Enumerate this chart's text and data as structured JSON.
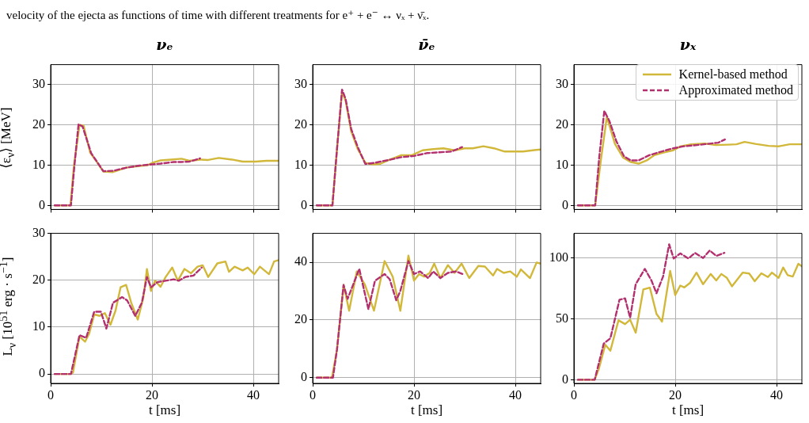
{
  "chart_data": [
    {
      "type": "line",
      "title": "νₑ",
      "ylabel": "⟨ε$_{ν}$⟩ [MeV]",
      "annotations": [
        "velocity of the ejecta as functions of time with different treatments for e⁺ + e⁻ ↔ νₓ + ν̄ₓ."
      ],
      "xlim": [
        0,
        45
      ],
      "xticks": [
        0,
        20,
        40
      ],
      "ylim": [
        -1,
        35
      ],
      "yticks": [
        0,
        10,
        20,
        30
      ],
      "grid": true,
      "tick_labels": "y",
      "series": [
        {
          "color": "#d2b83a",
          "line_style": "solid",
          "x": [
            0.8,
            3.9,
            4.6,
            5.7,
            6.5,
            7.8,
            8.9,
            10.4,
            12.3,
            14.9,
            17.5,
            19.1,
            20.1,
            21.7,
            23.8,
            25.8,
            27.4,
            29.5,
            31.1,
            33.2,
            35.8,
            37.9,
            40.5,
            42.6,
            45
          ],
          "values": [
            0,
            0,
            10,
            20,
            19.8,
            13.1,
            11.2,
            8.4,
            8.3,
            9.4,
            9.8,
            10,
            10.6,
            11.2,
            11.4,
            11.6,
            11.1,
            11.4,
            11.3,
            11.8,
            11.4,
            10.9,
            10.9,
            11.1,
            11.1
          ]
        },
        {
          "color": "#b3306f",
          "line_style": "dashed",
          "x": [
            0.8,
            4.0,
            4.7,
            5.5,
            6.3,
            8,
            10.4,
            12.3,
            15,
            17.5,
            20,
            21.7,
            24.3,
            25.8,
            27.4,
            29.5
          ],
          "values": [
            0,
            0,
            10,
            20.2,
            19.6,
            13,
            8.5,
            8.6,
            9.4,
            9.9,
            10.2,
            10.4,
            10.8,
            10.8,
            10.9,
            11.7
          ]
        }
      ]
    },
    {
      "type": "line",
      "title": "ν̄ₑ",
      "xlim": [
        0,
        45
      ],
      "xticks": [
        0,
        20,
        40
      ],
      "ylim": [
        -1,
        35
      ],
      "yticks": [
        0,
        10,
        20,
        30
      ],
      "grid": true,
      "tick_labels": "y",
      "series": [
        {
          "color": "#d2b83a",
          "line_style": "solid",
          "x": [
            0.8,
            3.9,
            4.8,
            5.8,
            6.5,
            7.6,
            8.9,
            10.4,
            11.8,
            13.3,
            14.9,
            17.5,
            19.6,
            21.7,
            23.8,
            25.8,
            28,
            30,
            31.6,
            33.7,
            35.8,
            37.9,
            39.9,
            41.5,
            44.1,
            45
          ],
          "values": [
            0,
            0,
            14,
            28.3,
            26,
            18.4,
            14,
            10.6,
            10.2,
            10.3,
            11.2,
            12.5,
            12.5,
            13.7,
            14,
            14.2,
            13.7,
            14.2,
            14.2,
            14.7,
            14.2,
            13.4,
            13.4,
            13.4,
            13.8,
            13.9
          ]
        },
        {
          "color": "#b3306f",
          "line_style": "dashed",
          "x": [
            0.8,
            3.9,
            4.8,
            5.8,
            6.5,
            7.6,
            8.9,
            10.4,
            12.3,
            15,
            17.5,
            20,
            22.5,
            25,
            27.4,
            29.5
          ],
          "values": [
            0,
            0,
            14,
            28.8,
            26.5,
            19,
            14.5,
            10.3,
            10.6,
            11.3,
            12,
            12.3,
            13,
            13.2,
            13.4,
            14.5
          ]
        }
      ]
    },
    {
      "type": "line",
      "title": "νₓ",
      "xlim": [
        0,
        45
      ],
      "xticks": [
        0,
        20,
        40
      ],
      "ylim": [
        -1,
        35
      ],
      "yticks": [
        0,
        10,
        20,
        30
      ],
      "grid": true,
      "tick_labels": "y",
      "legend": "top right",
      "series": [
        {
          "name": "Kernel-based method",
          "color": "#d2b83a",
          "line_style": "solid",
          "x": [
            0.8,
            4.2,
            5.3,
            6.5,
            8.1,
            9.7,
            11.2,
            12.8,
            14.4,
            15.9,
            17.5,
            19.6,
            21.1,
            23.2,
            25.8,
            28,
            30.5,
            32.1,
            33.7,
            35.8,
            38.4,
            40.5,
            42.6,
            45
          ],
          "values": [
            0,
            0,
            11,
            22,
            15.3,
            11.9,
            10.8,
            10.4,
            11.2,
            12.5,
            13.1,
            13.7,
            14.7,
            15.2,
            15.4,
            15,
            15.1,
            15.2,
            15.8,
            15.3,
            14.8,
            14.7,
            15.2,
            15.2
          ]
        },
        {
          "name": "Approximated method",
          "color": "#b3306f",
          "line_style": "dashed",
          "x": [
            0.8,
            4.2,
            5.0,
            6.0,
            7.0,
            8.4,
            9.9,
            11.2,
            12.8,
            14.9,
            17,
            19.6,
            21.7,
            24.3,
            26.4,
            28.5,
            29.8
          ],
          "values": [
            0,
            0,
            12,
            23.5,
            21,
            15.9,
            12.2,
            11.2,
            11.2,
            12.5,
            13.3,
            14.2,
            14.7,
            15,
            15.3,
            15.6,
            16.4
          ]
        }
      ]
    },
    {
      "type": "line",
      "xlabel": "t [ms]",
      "ylabel": "L$_{ν}$ [10$^{51}$ erg · s$^{−1}$]",
      "xlim": [
        0,
        45
      ],
      "xticks": [
        0,
        20,
        40
      ],
      "ylim": [
        -2,
        30
      ],
      "yticks": [
        0,
        10,
        20,
        30
      ],
      "grid": true,
      "series": [
        {
          "color": "#d2b83a",
          "line_style": "solid",
          "x": [
            0.8,
            3.9,
            4.4,
            5.7,
            6.8,
            7.6,
            8.6,
            9.7,
            10.7,
            11.8,
            12.8,
            13.8,
            14.9,
            15.9,
            17.2,
            18.3,
            19,
            19.8,
            20.6,
            21.7,
            22.7,
            24,
            25.1,
            26.4,
            27.7,
            29,
            30,
            31.1,
            32.9,
            34.5,
            35.2,
            36.3,
            37.9,
            38.9,
            40.2,
            41.3,
            43.1,
            44.1,
            45
          ],
          "values": [
            0,
            0,
            0.3,
            8,
            6.9,
            8.6,
            12.7,
            12.4,
            13,
            10.5,
            13.5,
            18.5,
            19,
            15.2,
            11.6,
            16.3,
            22.4,
            17.7,
            19.9,
            18.6,
            20.7,
            22.7,
            19.9,
            22.4,
            21.5,
            22.9,
            23.2,
            20.7,
            23.6,
            24,
            21.8,
            22.9,
            22.1,
            22.7,
            21.3,
            22.9,
            21.3,
            24,
            24.3
          ]
        },
        {
          "color": "#b3306f",
          "line_style": "dashed",
          "x": [
            0.8,
            4,
            5.7,
            7,
            8.6,
            9.9,
            11,
            12.3,
            14.1,
            15.1,
            16.7,
            18,
            19,
            19.8,
            21.1,
            22.7,
            24.3,
            25.3,
            26.6,
            28.2,
            29.8
          ],
          "values": [
            0,
            0,
            8.3,
            7.7,
            13.3,
            13.3,
            9.7,
            15.2,
            16.4,
            15.7,
            12.4,
            15.2,
            20.7,
            18.5,
            19.6,
            19.9,
            20.2,
            19.9,
            20.7,
            21,
            22.7
          ]
        }
      ]
    },
    {
      "type": "line",
      "xlabel": "t [ms]",
      "xlim": [
        0,
        45
      ],
      "xticks": [
        0,
        20,
        40
      ],
      "ylim": [
        -2,
        50
      ],
      "yticks": [
        0,
        20,
        40
      ],
      "grid": true,
      "series": [
        {
          "color": "#d2b83a",
          "line_style": "solid",
          "x": [
            0.8,
            3.8,
            4.8,
            6.1,
            7.2,
            8.7,
            10.3,
            12.1,
            14.2,
            15.8,
            17.3,
            18.9,
            20,
            21,
            22,
            23.1,
            24,
            25.2,
            26.7,
            28,
            29.4,
            30.9,
            32.7,
            34,
            35.6,
            36.4,
            37.7,
            39,
            40.3,
            41.1,
            42.9,
            44.2,
            45
          ],
          "values": [
            0,
            0,
            9.7,
            32.1,
            23.2,
            36.8,
            32.3,
            23.2,
            40.4,
            35,
            23.2,
            42.3,
            33.6,
            35.9,
            35,
            36.3,
            39.5,
            34.5,
            39,
            36.3,
            39.5,
            34.5,
            38.7,
            38.5,
            35.4,
            37.7,
            36.3,
            36.8,
            35,
            37.5,
            34.5,
            39.9,
            39.5
          ]
        },
        {
          "color": "#b3306f",
          "line_style": "dashed",
          "x": [
            0.8,
            4,
            4.8,
            6.1,
            6.9,
            9.2,
            11,
            12.3,
            14.2,
            15.2,
            16.5,
            17.3,
            18.9,
            20,
            21.2,
            22.8,
            23.8,
            25.2,
            26.7,
            28.3,
            29.6
          ],
          "values": [
            0,
            0,
            9.7,
            32.1,
            27.3,
            37.7,
            23.7,
            33.6,
            35.9,
            34.1,
            26.8,
            30,
            40.4,
            35.9,
            36.8,
            34.5,
            36.8,
            34.5,
            36.3,
            36.8,
            35.9
          ]
        }
      ]
    },
    {
      "type": "line",
      "xlabel": "t [ms]",
      "xlim": [
        0,
        45
      ],
      "xticks": [
        0,
        20,
        40
      ],
      "ylim": [
        -3,
        120
      ],
      "yticks": [
        0,
        50,
        100
      ],
      "grid": true,
      "series": [
        {
          "color": "#d2b83a",
          "line_style": "solid",
          "x": [
            0.8,
            4.1,
            4.9,
            6.2,
            7.2,
            8.8,
            10.1,
            11.1,
            12.2,
            13.7,
            15,
            16.3,
            17.4,
            19,
            20,
            21,
            21.8,
            22.9,
            24.2,
            25.5,
            27,
            28.1,
            29.1,
            30.2,
            31.2,
            33.3,
            34.6,
            35.7,
            37,
            38.3,
            39.1,
            40.4,
            41.3,
            42.2,
            43.2,
            44.3,
            45
          ],
          "values": [
            0,
            0,
            8.6,
            28.7,
            23.8,
            48.7,
            45.6,
            49.2,
            38.6,
            74,
            75.5,
            54,
            47.7,
            89.2,
            69.4,
            77.2,
            75.7,
            79.3,
            87.8,
            78.3,
            86.7,
            81.4,
            86.7,
            83.5,
            76.6,
            87.8,
            87.1,
            80.8,
            87.3,
            84.2,
            87.8,
            83.5,
            92,
            85.7,
            84.6,
            95.1,
            93
          ]
        },
        {
          "color": "#b3306f",
          "line_style": "dashed",
          "x": [
            0.8,
            4.1,
            5.9,
            7.2,
            9,
            10.1,
            11.1,
            12.2,
            14,
            15.3,
            16.3,
            17.6,
            18.8,
            19.7,
            21,
            22.6,
            23.9,
            25.5,
            26.8,
            28.1,
            29.7
          ],
          "values": [
            0,
            0,
            29.7,
            34,
            65.6,
            66.7,
            50.8,
            78.3,
            90.9,
            81.4,
            70.9,
            84.6,
            111,
            99.4,
            103.6,
            99.4,
            104,
            99.8,
            106,
            101.5,
            104
          ]
        }
      ]
    }
  ]
}
